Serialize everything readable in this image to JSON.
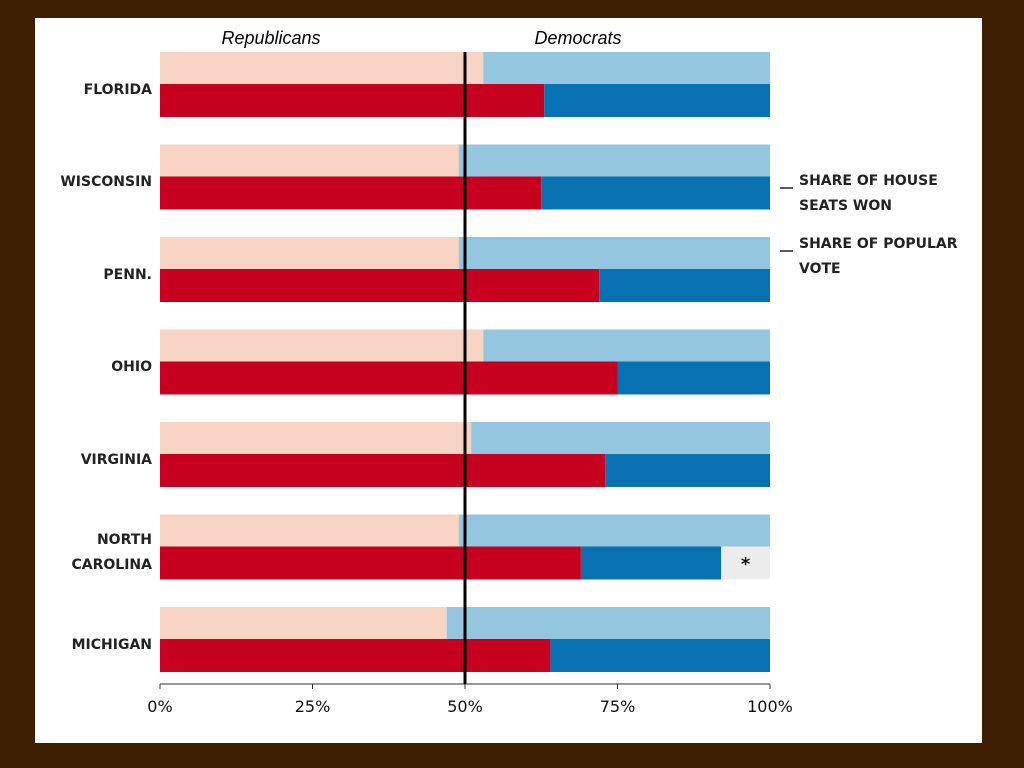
{
  "chart_data": {
    "type": "paired_stacked_bar",
    "categories": [
      "FLORIDA",
      "WISCONSIN",
      "PENN.",
      "OHIO",
      "VIRGINIA",
      "NORTH CAROLINA",
      "MICHIGAN"
    ],
    "groups": [
      {
        "name": "SHARE OF POPULAR VOTE",
        "series": [
          {
            "name": "Republicans",
            "color": "#f7d4c4",
            "values": [
              53,
              49,
              49,
              53,
              51,
              49,
              47
            ]
          },
          {
            "name": "Democrats",
            "color": "#95c6df",
            "values": [
              47,
              51,
              51,
              47,
              49,
              51,
              53
            ]
          }
        ]
      },
      {
        "name": "SHARE OF HOUSE SEATS WON",
        "series": [
          {
            "color": "#c8001f",
            "values": [
              63,
              62.5,
              72,
              75,
              73,
              69,
              64
            ]
          },
          {
            "color": "#0771b1",
            "values": [
              37,
              37.5,
              28,
              25,
              27,
              23,
              36
            ]
          },
          {
            "name": "*",
            "color": "#ececec",
            "values": [
              null,
              null,
              null,
              null,
              null,
              8,
              null
            ]
          }
        ]
      }
    ],
    "xlim": [
      0,
      100
    ],
    "xticks": [
      {
        "value": 0,
        "label": "0%"
      },
      {
        "value": 25,
        "label": "25%"
      },
      {
        "value": 50,
        "label": "50%"
      },
      {
        "value": 75,
        "label": "75%"
      },
      {
        "value": 100,
        "label": "100%"
      }
    ]
  }
}
